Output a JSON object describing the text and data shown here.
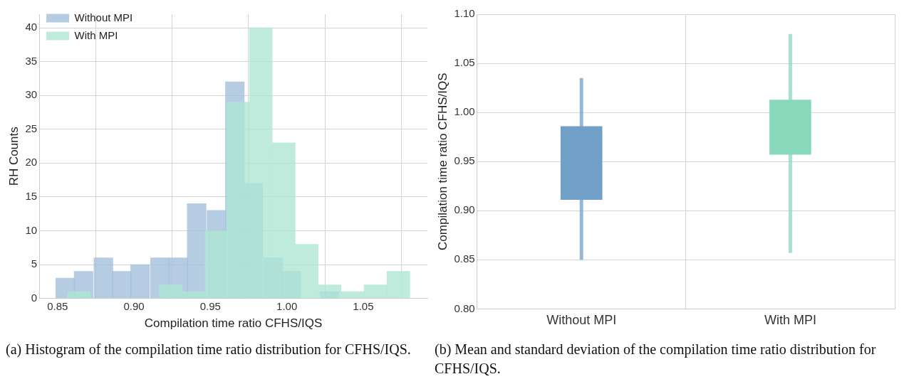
{
  "chart_data": [
    {
      "type": "bar",
      "xlabel": "Compilation time ratio CFHS/IQS",
      "ylabel": "RH Counts",
      "xlim": [
        0.838,
        1.092
      ],
      "xticks": [
        {
          "value": 0.85,
          "label": "0.85"
        },
        {
          "value": 0.9,
          "label": "0.90"
        },
        {
          "value": 0.95,
          "label": "0.95"
        },
        {
          "value": 1.0,
          "label": "1.00"
        },
        {
          "value": 1.05,
          "label": "1.05"
        }
      ],
      "ylim": [
        0,
        42
      ],
      "yticks": [
        0,
        5,
        10,
        15,
        20,
        25,
        30,
        35,
        40
      ],
      "grid": true,
      "legend": "top left",
      "series": [
        {
          "name": "Without MPI",
          "color": "#a3bfdc",
          "x": [
            0.855,
            0.867,
            0.88,
            0.892,
            0.904,
            0.917,
            0.929,
            0.941,
            0.954,
            0.966,
            0.978,
            0.991,
            1.003,
            1.015,
            1.028
          ],
          "values": [
            3,
            4,
            6,
            4,
            5,
            6,
            6,
            14,
            13,
            32,
            17,
            6,
            4,
            0,
            1
          ]
        },
        {
          "name": "With MPI",
          "color": "#aee6d3",
          "x": [
            0.864,
            0.879,
            0.894,
            0.909,
            0.924,
            0.939,
            0.954,
            0.968,
            0.983,
            0.998,
            1.013,
            1.028,
            1.043,
            1.058,
            1.073
          ],
          "values": [
            1,
            0,
            0,
            0,
            2,
            1,
            10,
            29,
            40,
            23,
            8,
            2,
            1,
            2,
            4
          ]
        }
      ],
      "annotations": [
        "(a) Histogram of the compilation time ratio distribution for CFHS/IQS."
      ]
    },
    {
      "type": "box",
      "ylabel": "Compilation time ratio CFHS/IQS",
      "categories": [
        "Without MPI",
        "With MPI"
      ],
      "ylim": [
        0.8,
        1.1
      ],
      "yticks": [
        {
          "value": 0.8,
          "label": "0.80"
        },
        {
          "value": 0.85,
          "label": "0.85"
        },
        {
          "value": 0.9,
          "label": "0.90"
        },
        {
          "value": 0.95,
          "label": "0.95"
        },
        {
          "value": 1.0,
          "label": "1.00"
        },
        {
          "value": 1.05,
          "label": "1.05"
        },
        {
          "value": 1.1,
          "label": "1.10"
        }
      ],
      "grid": true,
      "colors": [
        "#70a0c7",
        "#8ad8bc"
      ],
      "boxes": [
        {
          "low": 0.85,
          "q1": 0.911,
          "q3": 0.986,
          "high": 1.035
        },
        {
          "low": 0.857,
          "q1": 0.957,
          "q3": 1.013,
          "high": 1.08
        }
      ],
      "annotations": [
        "(b) Mean and standard deviation of the compilation time ratio distribution for CFHS/IQS."
      ]
    }
  ]
}
